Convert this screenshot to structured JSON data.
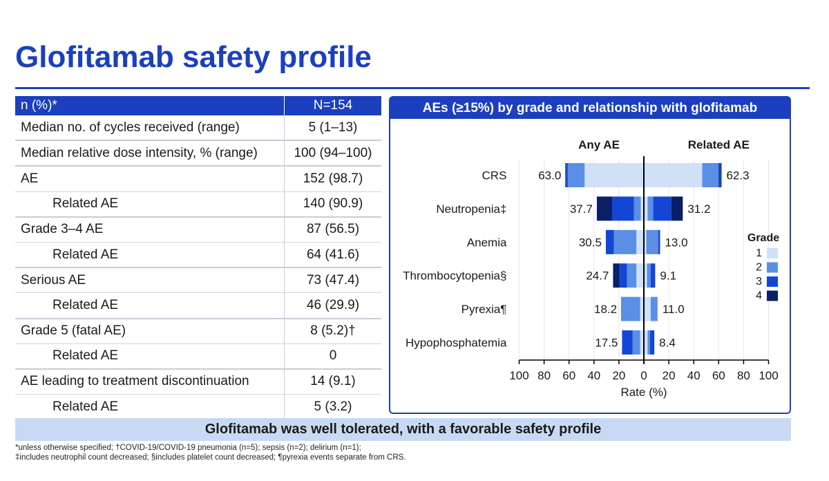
{
  "title": "Glofitamab safety profile",
  "table": {
    "header": {
      "label": "n (%)*",
      "value": "N=154"
    },
    "rows": [
      {
        "label": "Median no. of cycles received (range)",
        "value": "5 (1–13)",
        "sub": false
      },
      {
        "label": "Median relative dose intensity, % (range)",
        "value": "100 (94–100)",
        "sub": false
      },
      {
        "label": "AE",
        "value": "152 (98.7)",
        "sub": false
      },
      {
        "label": "Related AE",
        "value": "140 (90.9)",
        "sub": true
      },
      {
        "label": "Grade 3–4 AE",
        "value": "87 (56.5)",
        "sub": false
      },
      {
        "label": "Related AE",
        "value": "64 (41.6)",
        "sub": true
      },
      {
        "label": "Serious AE",
        "value": "73 (47.4)",
        "sub": false
      },
      {
        "label": "Related AE",
        "value": "46 (29.9)",
        "sub": true
      },
      {
        "label": "Grade 5 (fatal AE)",
        "value": "8 (5.2)†",
        "sub": false
      },
      {
        "label": "Related AE",
        "value": "0",
        "sub": true
      },
      {
        "label": "AE leading to treatment discontinuation",
        "value": "14 (9.1)",
        "sub": false
      },
      {
        "label": "Related AE",
        "value": "5 (3.2)",
        "sub": true
      }
    ]
  },
  "chart_title": "AEs (≥15%) by grade and relationship with glofitamab",
  "chart_data": {
    "type": "bar",
    "orientation": "horizontal-butterfly",
    "left_label": "Any AE",
    "right_label": "Related AE",
    "categories": [
      "CRS",
      "Neutropenia‡",
      "Anemia",
      "Thrombocytopenia§",
      "Pyrexia¶",
      "Hypophosphatemia"
    ],
    "legend_title": "Grade",
    "grades": [
      "1",
      "2",
      "3",
      "4"
    ],
    "grade_colors": [
      "#cfe0f7",
      "#5b8fe6",
      "#1446d6",
      "#0a1f66"
    ],
    "any_totals": [
      63.0,
      37.7,
      30.5,
      24.7,
      18.2,
      17.5
    ],
    "any_total_labels": [
      "63.0",
      "37.7",
      "30.5",
      "24.7",
      "18.2",
      "17.5"
    ],
    "related_totals": [
      62.3,
      31.2,
      13.0,
      9.1,
      11.0,
      8.4
    ],
    "related_total_labels": [
      "62.3",
      "31.2",
      "13.0",
      "9.1",
      "11.0",
      "8.4"
    ],
    "any_by_grade": [
      [
        47.5,
        13.5,
        1.5,
        0.5
      ],
      [
        2.5,
        5.5,
        17.5,
        12.2
      ],
      [
        6.0,
        18.0,
        6.5,
        0.0
      ],
      [
        6.0,
        7.5,
        6.0,
        5.2
      ],
      [
        3.0,
        15.0,
        0.2,
        0.0
      ],
      [
        3.0,
        6.0,
        8.5,
        0.0
      ]
    ],
    "related_by_grade": [
      [
        46.8,
        13.0,
        2.0,
        0.5
      ],
      [
        3.0,
        4.5,
        14.5,
        9.2
      ],
      [
        2.0,
        9.5,
        1.5,
        0.0
      ],
      [
        2.5,
        3.0,
        3.6,
        0.0
      ],
      [
        5.5,
        5.5,
        0.0,
        0.0
      ],
      [
        3.0,
        2.0,
        3.4,
        0.0
      ]
    ],
    "x_ticks": [
      "100",
      "80",
      "60",
      "40",
      "20",
      "0",
      "20",
      "40",
      "60",
      "80",
      "100"
    ],
    "xlabel": "Rate (%)",
    "xlim": [
      0,
      100
    ],
    "grid": true,
    "legend_position": "right"
  },
  "footer_banner": "Glofitamab was well tolerated, with a favorable safety profile",
  "footnote1": "*unless otherwise specified; †COVID-19/COVID-19 pneumonia (n=5); sepsis (n=2); delirium (n=1);",
  "footnote2": "‡includes neutrophil count decreased; §includes platelet count decreased; ¶pyrexia events separate from CRS."
}
